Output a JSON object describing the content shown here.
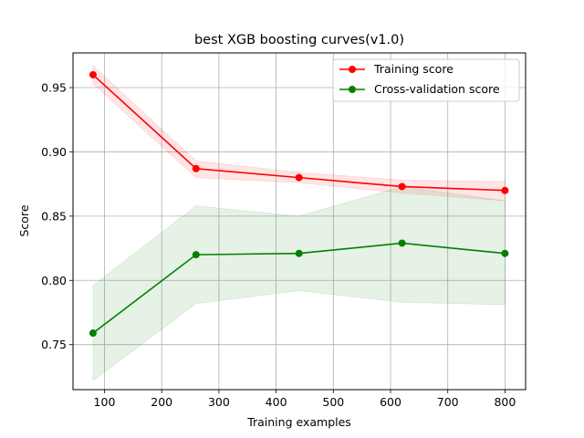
{
  "chart_data": {
    "type": "line",
    "title": "best XGB boosting curves(v1.0)",
    "xlabel": "Training examples",
    "ylabel": "Score",
    "xlim": [
      45,
      836
    ],
    "ylim": [
      0.715,
      0.977
    ],
    "x_ticks": [
      100,
      200,
      300,
      400,
      500,
      600,
      700,
      800
    ],
    "x_tick_labels": [
      "100",
      "200",
      "300",
      "400",
      "500",
      "600",
      "700",
      "800"
    ],
    "y_ticks": [
      0.75,
      0.8,
      0.85,
      0.9,
      0.95
    ],
    "y_tick_labels": [
      "0.75",
      "0.80",
      "0.85",
      "0.90",
      "0.95"
    ],
    "grid": true,
    "legend_position": "top-right",
    "x": [
      80,
      260,
      440,
      620,
      800
    ],
    "series": [
      {
        "name": "Training score",
        "color": "#ff0000",
        "values": [
          0.96,
          0.887,
          0.88,
          0.873,
          0.87
        ],
        "band_lower": [
          0.953,
          0.88,
          0.876,
          0.868,
          0.862
        ],
        "band_upper": [
          0.967,
          0.893,
          0.884,
          0.878,
          0.877
        ]
      },
      {
        "name": "Cross-validation score",
        "color": "#008000",
        "values": [
          0.759,
          0.82,
          0.821,
          0.829,
          0.821
        ],
        "band_lower": [
          0.722,
          0.782,
          0.792,
          0.783,
          0.781
        ],
        "band_upper": [
          0.796,
          0.858,
          0.85,
          0.873,
          0.862
        ]
      }
    ]
  }
}
